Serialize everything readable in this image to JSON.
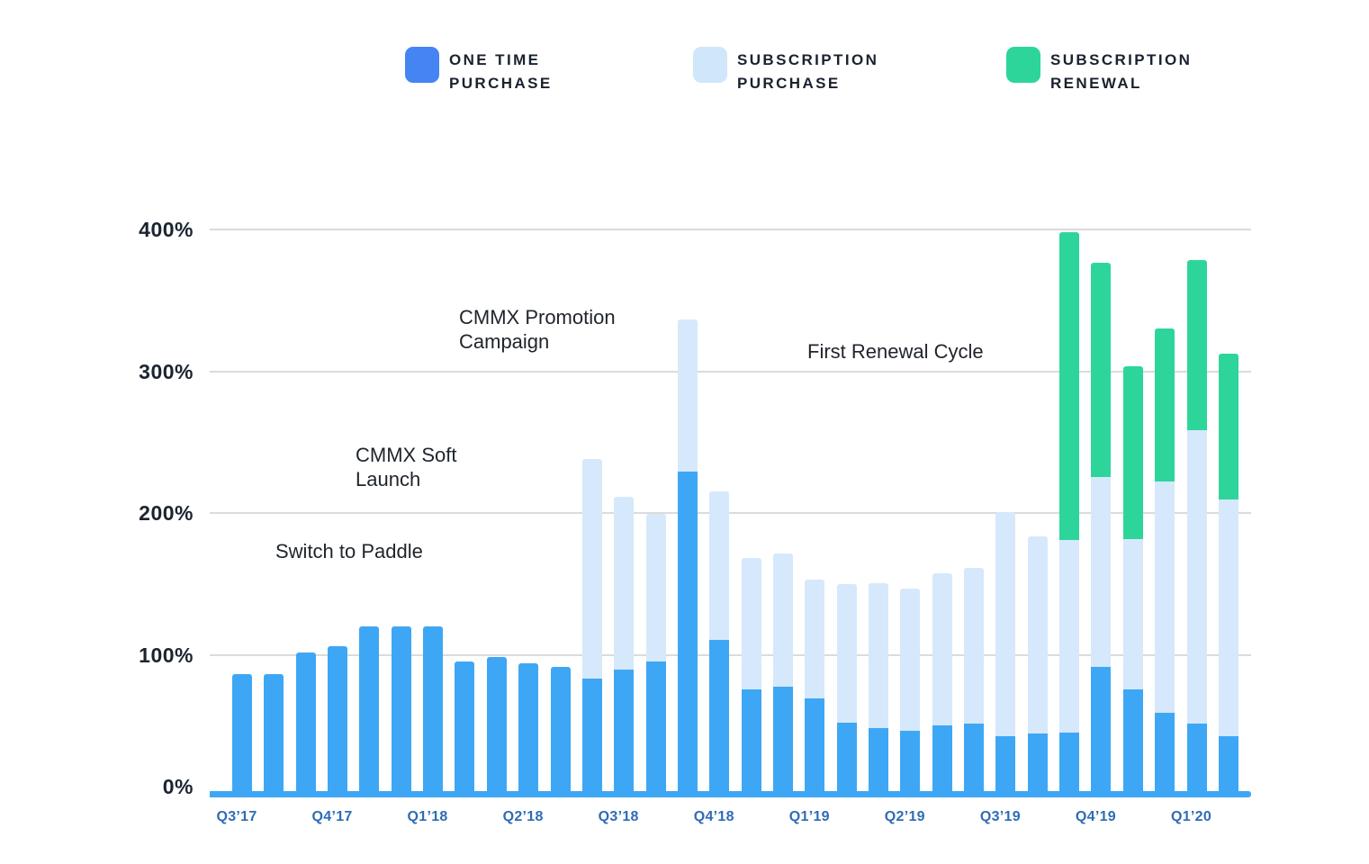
{
  "legend": {
    "items": [
      {
        "label": "ONE TIME\nPURCHASE",
        "color": "#4584f3"
      },
      {
        "label": "SUBSCRIPTION\nPURCHASE",
        "color": "#cfe6fb"
      },
      {
        "label": "SUBSCRIPTION\nRENEWAL",
        "color": "#2ed59a"
      }
    ]
  },
  "annotations": {
    "switch_to_paddle": "Switch to Paddle",
    "cmmx_soft_launch": "CMMX Soft Launch",
    "cmmx_promotion_campaign": "CMMX Promotion Campaign",
    "first_renewal_cycle": "First Renewal Cycle"
  },
  "colors": {
    "one_time": "#3ea7f5",
    "subscription_purchase": "#d6e8fb",
    "subscription_renewal": "#2ed59a",
    "baseline": "#3ea7f5",
    "gridline": "#d9dbdd",
    "x_label": "#2e6cb5",
    "y_label": "#1c2430"
  },
  "chart_data": {
    "type": "bar",
    "stacked": true,
    "unit": "%",
    "ylim": [
      0,
      400
    ],
    "yticks": [
      0,
      100,
      200,
      300,
      400
    ],
    "ytick_labels": [
      "0%",
      "100%",
      "200%",
      "300%",
      "400%"
    ],
    "grid": "horizontal",
    "legend_position": "top",
    "series_names": [
      "One Time Purchase",
      "Subscription Purchase",
      "Subscription Renewal"
    ],
    "quarter_labels": [
      "Q3’17",
      "Q4’17",
      "Q1’18",
      "Q2’18",
      "Q3’18",
      "Q4’18",
      "Q1’19",
      "Q2’19",
      "Q3’19",
      "Q4’19",
      "Q1’20"
    ],
    "note": "Monthly bars; quarter label is anchored under the first bar of each quarter; values are stacked segment sizes in %.",
    "bars": [
      {
        "label": "Q3’17",
        "one_time": 85,
        "subscription_purchase": 0,
        "subscription_renewal": 0
      },
      {
        "label": "",
        "one_time": 85,
        "subscription_purchase": 0,
        "subscription_renewal": 0
      },
      {
        "label": "",
        "one_time": 100,
        "subscription_purchase": 0,
        "subscription_renewal": 0
      },
      {
        "label": "Q4’17",
        "one_time": 105,
        "subscription_purchase": 0,
        "subscription_renewal": 0
      },
      {
        "label": "",
        "one_time": 119,
        "subscription_purchase": 0,
        "subscription_renewal": 0
      },
      {
        "label": "",
        "one_time": 119,
        "subscription_purchase": 0,
        "subscription_renewal": 0
      },
      {
        "label": "Q1’18",
        "one_time": 119,
        "subscription_purchase": 0,
        "subscription_renewal": 0
      },
      {
        "label": "",
        "one_time": 94,
        "subscription_purchase": 0,
        "subscription_renewal": 0
      },
      {
        "label": "",
        "one_time": 97,
        "subscription_purchase": 0,
        "subscription_renewal": 0
      },
      {
        "label": "Q2’18",
        "one_time": 93,
        "subscription_purchase": 0,
        "subscription_renewal": 0
      },
      {
        "label": "",
        "one_time": 90,
        "subscription_purchase": 0,
        "subscription_renewal": 0
      },
      {
        "label": "",
        "one_time": 82,
        "subscription_purchase": 155,
        "subscription_renewal": 0
      },
      {
        "label": "Q3’18",
        "one_time": 88,
        "subscription_purchase": 122,
        "subscription_renewal": 0
      },
      {
        "label": "",
        "one_time": 94,
        "subscription_purchase": 104,
        "subscription_renewal": 0
      },
      {
        "label": "",
        "one_time": 228,
        "subscription_purchase": 107,
        "subscription_renewal": 0
      },
      {
        "label": "Q4’18",
        "one_time": 109,
        "subscription_purchase": 105,
        "subscription_renewal": 0
      },
      {
        "label": "",
        "one_time": 74,
        "subscription_purchase": 93,
        "subscription_renewal": 0
      },
      {
        "label": "",
        "one_time": 76,
        "subscription_purchase": 94,
        "subscription_renewal": 0
      },
      {
        "label": "Q1’19",
        "one_time": 68,
        "subscription_purchase": 84,
        "subscription_renewal": 0
      },
      {
        "label": "",
        "one_time": 51,
        "subscription_purchase": 98,
        "subscription_renewal": 0
      },
      {
        "label": "",
        "one_time": 47,
        "subscription_purchase": 102,
        "subscription_renewal": 0
      },
      {
        "label": "Q2’19",
        "one_time": 45,
        "subscription_purchase": 100,
        "subscription_renewal": 0
      },
      {
        "label": "",
        "one_time": 49,
        "subscription_purchase": 107,
        "subscription_renewal": 0
      },
      {
        "label": "",
        "one_time": 50,
        "subscription_purchase": 110,
        "subscription_renewal": 0
      },
      {
        "label": "Q3’19",
        "one_time": 41,
        "subscription_purchase": 158,
        "subscription_renewal": 0
      },
      {
        "label": "",
        "one_time": 43,
        "subscription_purchase": 139,
        "subscription_renewal": 0
      },
      {
        "label": "",
        "one_time": 44,
        "subscription_purchase": 136,
        "subscription_renewal": 217
      },
      {
        "label": "Q4’19",
        "one_time": 90,
        "subscription_purchase": 134,
        "subscription_renewal": 151
      },
      {
        "label": "",
        "one_time": 74,
        "subscription_purchase": 106,
        "subscription_renewal": 122
      },
      {
        "label": "",
        "one_time": 58,
        "subscription_purchase": 163,
        "subscription_renewal": 108
      },
      {
        "label": "Q1’20",
        "one_time": 50,
        "subscription_purchase": 207,
        "subscription_renewal": 120
      },
      {
        "label": "",
        "one_time": 41,
        "subscription_purchase": 167,
        "subscription_renewal": 103
      }
    ]
  }
}
